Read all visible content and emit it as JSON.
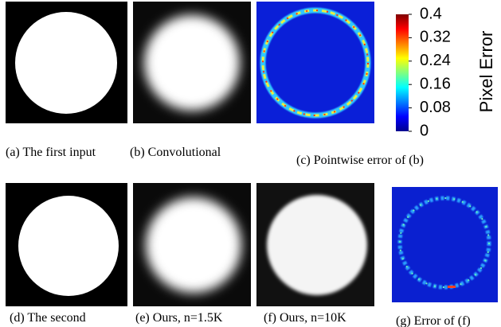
{
  "captions": {
    "a": "(a)  The first input",
    "b": "(b)  Convolutional",
    "c": "(c)  Pointwise error of (b)",
    "d": "(d)  The second",
    "e": "(e)  Ours, n=1.5K",
    "f": "(f)  Ours, n=10K",
    "g": "(g)  Error of (f)"
  },
  "colorbar": {
    "label": "Pixel Error",
    "lim": [
      0,
      0.4
    ],
    "ticks": [
      0,
      0.08,
      0.16,
      0.24,
      0.32,
      0.4
    ]
  }
}
